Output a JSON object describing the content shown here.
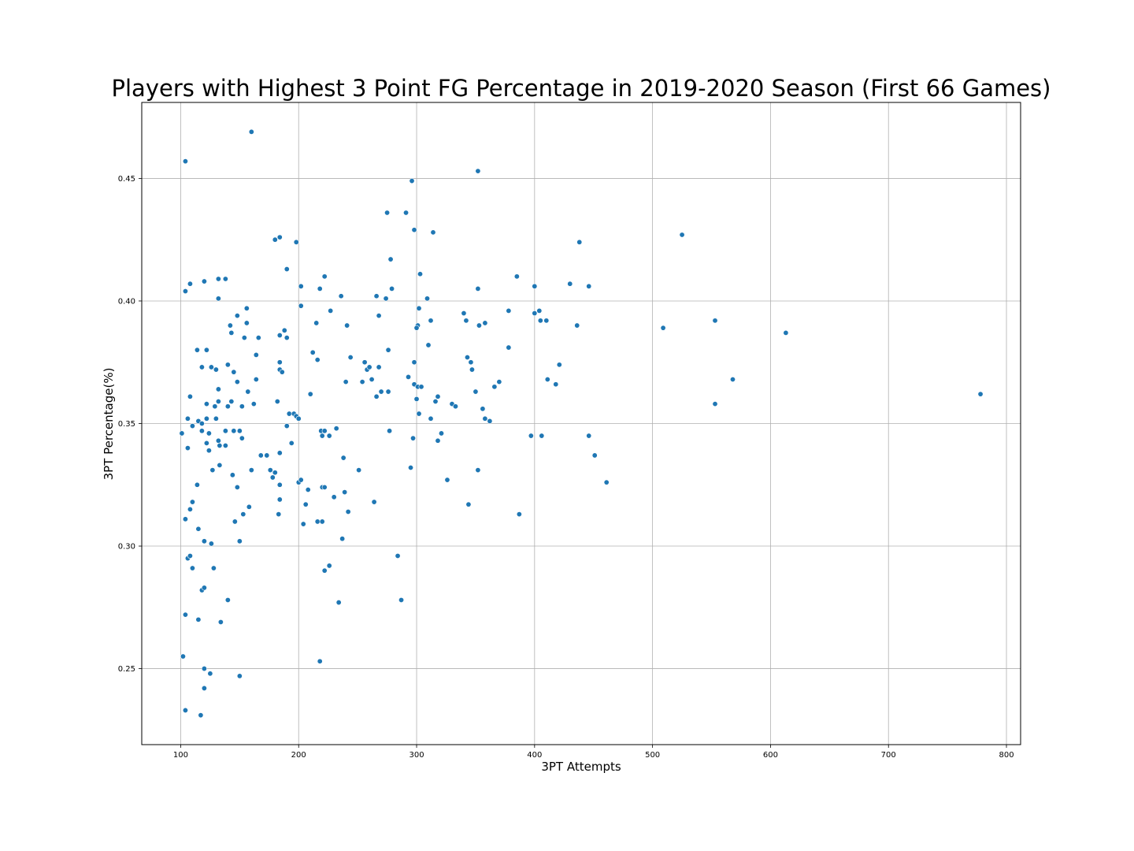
{
  "chart_data": {
    "type": "scatter",
    "title": "Players with Highest 3 Point FG Percentage in 2019-2020 Season (First 66 Games)",
    "xlabel": "3PT Attempts",
    "ylabel": "3PT Percentage(%)",
    "xlim": [
      67,
      812
    ],
    "ylim": [
      0.219,
      0.481
    ],
    "xticks": [
      "100",
      "200",
      "300",
      "400",
      "500",
      "600",
      "700",
      "800"
    ],
    "yticks": [
      "0.25",
      "0.30",
      "0.35",
      "0.40",
      "0.45"
    ],
    "grid": true,
    "marker_color": "#1f77b4",
    "points": [
      [
        104,
        0.457
      ],
      [
        160,
        0.469
      ],
      [
        352,
        0.453
      ],
      [
        296,
        0.449
      ],
      [
        104,
        0.404
      ],
      [
        108,
        0.407
      ],
      [
        120,
        0.408
      ],
      [
        132,
        0.409
      ],
      [
        138,
        0.409
      ],
      [
        132,
        0.401
      ],
      [
        148,
        0.394
      ],
      [
        156,
        0.397
      ],
      [
        142,
        0.39
      ],
      [
        143,
        0.387
      ],
      [
        154,
        0.385
      ],
      [
        156,
        0.391
      ],
      [
        166,
        0.385
      ],
      [
        114,
        0.38
      ],
      [
        122,
        0.38
      ],
      [
        118,
        0.373
      ],
      [
        126,
        0.373
      ],
      [
        130,
        0.372
      ],
      [
        140,
        0.374
      ],
      [
        145,
        0.371
      ],
      [
        148,
        0.367
      ],
      [
        164,
        0.378
      ],
      [
        164,
        0.368
      ],
      [
        157,
        0.363
      ],
      [
        132,
        0.364
      ],
      [
        108,
        0.361
      ],
      [
        122,
        0.358
      ],
      [
        132,
        0.359
      ],
      [
        129,
        0.357
      ],
      [
        140,
        0.357
      ],
      [
        143,
        0.359
      ],
      [
        152,
        0.357
      ],
      [
        162,
        0.358
      ],
      [
        106,
        0.352
      ],
      [
        122,
        0.352
      ],
      [
        130,
        0.352
      ],
      [
        115,
        0.351
      ],
      [
        118,
        0.35
      ],
      [
        110,
        0.349
      ],
      [
        101,
        0.346
      ],
      [
        118,
        0.347
      ],
      [
        124,
        0.346
      ],
      [
        138,
        0.347
      ],
      [
        145,
        0.347
      ],
      [
        150,
        0.347
      ],
      [
        152,
        0.344
      ],
      [
        132,
        0.343
      ],
      [
        122,
        0.342
      ],
      [
        133,
        0.341
      ],
      [
        138,
        0.341
      ],
      [
        106,
        0.34
      ],
      [
        124,
        0.339
      ],
      [
        160,
        0.331
      ],
      [
        168,
        0.337
      ],
      [
        173,
        0.337
      ],
      [
        176,
        0.331
      ],
      [
        178,
        0.328
      ],
      [
        180,
        0.33
      ],
      [
        184,
        0.338
      ],
      [
        183,
        0.313
      ],
      [
        184,
        0.319
      ],
      [
        184,
        0.325
      ],
      [
        127,
        0.331
      ],
      [
        133,
        0.333
      ],
      [
        144,
        0.329
      ],
      [
        148,
        0.324
      ],
      [
        114,
        0.325
      ],
      [
        110,
        0.318
      ],
      [
        108,
        0.315
      ],
      [
        104,
        0.311
      ],
      [
        115,
        0.307
      ],
      [
        153,
        0.313
      ],
      [
        158,
        0.316
      ],
      [
        146,
        0.31
      ],
      [
        150,
        0.302
      ],
      [
        120,
        0.302
      ],
      [
        126,
        0.301
      ],
      [
        106,
        0.295
      ],
      [
        108,
        0.296
      ],
      [
        110,
        0.291
      ],
      [
        128,
        0.291
      ],
      [
        118,
        0.282
      ],
      [
        120,
        0.283
      ],
      [
        140,
        0.278
      ],
      [
        104,
        0.272
      ],
      [
        115,
        0.27
      ],
      [
        134,
        0.269
      ],
      [
        102,
        0.255
      ],
      [
        120,
        0.25
      ],
      [
        125,
        0.248
      ],
      [
        150,
        0.247
      ],
      [
        120,
        0.242
      ],
      [
        104,
        0.233
      ],
      [
        117,
        0.231
      ],
      [
        180,
        0.425
      ],
      [
        184,
        0.426
      ],
      [
        198,
        0.424
      ],
      [
        190,
        0.413
      ],
      [
        182,
        0.359
      ],
      [
        184,
        0.386
      ],
      [
        184,
        0.375
      ],
      [
        184,
        0.372
      ],
      [
        186,
        0.371
      ],
      [
        188,
        0.388
      ],
      [
        190,
        0.385
      ],
      [
        192,
        0.354
      ],
      [
        196,
        0.354
      ],
      [
        198,
        0.353
      ],
      [
        200,
        0.352
      ],
      [
        190,
        0.349
      ],
      [
        194,
        0.342
      ],
      [
        200,
        0.326
      ],
      [
        202,
        0.327
      ],
      [
        206,
        0.317
      ],
      [
        208,
        0.323
      ],
      [
        204,
        0.309
      ],
      [
        202,
        0.398
      ],
      [
        202,
        0.406
      ],
      [
        212,
        0.379
      ],
      [
        210,
        0.362
      ],
      [
        215,
        0.391
      ],
      [
        216,
        0.376
      ],
      [
        218,
        0.405
      ],
      [
        222,
        0.41
      ],
      [
        227,
        0.396
      ],
      [
        219,
        0.347
      ],
      [
        220,
        0.345
      ],
      [
        222,
        0.347
      ],
      [
        226,
        0.345
      ],
      [
        232,
        0.348
      ],
      [
        220,
        0.324
      ],
      [
        222,
        0.324
      ],
      [
        216,
        0.31
      ],
      [
        220,
        0.31
      ],
      [
        230,
        0.32
      ],
      [
        236,
        0.402
      ],
      [
        240,
        0.367
      ],
      [
        241,
        0.39
      ],
      [
        244,
        0.377
      ],
      [
        238,
        0.336
      ],
      [
        239,
        0.322
      ],
      [
        242,
        0.314
      ],
      [
        237,
        0.303
      ],
      [
        222,
        0.29
      ],
      [
        226,
        0.292
      ],
      [
        234,
        0.277
      ],
      [
        218,
        0.253
      ],
      [
        256,
        0.375
      ],
      [
        258,
        0.372
      ],
      [
        260,
        0.373
      ],
      [
        262,
        0.368
      ],
      [
        254,
        0.367
      ],
      [
        251,
        0.331
      ],
      [
        266,
        0.402
      ],
      [
        268,
        0.394
      ],
      [
        268,
        0.373
      ],
      [
        266,
        0.361
      ],
      [
        270,
        0.363
      ],
      [
        264,
        0.318
      ],
      [
        274,
        0.401
      ],
      [
        275,
        0.436
      ],
      [
        278,
        0.417
      ],
      [
        279,
        0.405
      ],
      [
        276,
        0.38
      ],
      [
        276,
        0.363
      ],
      [
        277,
        0.347
      ],
      [
        291,
        0.436
      ],
      [
        298,
        0.429
      ],
      [
        303,
        0.411
      ],
      [
        302,
        0.397
      ],
      [
        301,
        0.39
      ],
      [
        300,
        0.389
      ],
      [
        309,
        0.401
      ],
      [
        310,
        0.382
      ],
      [
        312,
        0.392
      ],
      [
        293,
        0.369
      ],
      [
        298,
        0.366
      ],
      [
        298,
        0.375
      ],
      [
        301,
        0.365
      ],
      [
        304,
        0.365
      ],
      [
        300,
        0.36
      ],
      [
        302,
        0.354
      ],
      [
        297,
        0.344
      ],
      [
        295,
        0.332
      ],
      [
        284,
        0.296
      ],
      [
        287,
        0.278
      ],
      [
        312,
        0.352
      ],
      [
        314,
        0.428
      ],
      [
        318,
        0.361
      ],
      [
        316,
        0.359
      ],
      [
        318,
        0.343
      ],
      [
        321,
        0.346
      ],
      [
        326,
        0.327
      ],
      [
        330,
        0.358
      ],
      [
        333,
        0.357
      ],
      [
        340,
        0.395
      ],
      [
        342,
        0.392
      ],
      [
        343,
        0.377
      ],
      [
        346,
        0.375
      ],
      [
        347,
        0.372
      ],
      [
        350,
        0.363
      ],
      [
        352,
        0.405
      ],
      [
        353,
        0.39
      ],
      [
        352,
        0.331
      ],
      [
        356,
        0.356
      ],
      [
        358,
        0.352
      ],
      [
        358,
        0.391
      ],
      [
        362,
        0.351
      ],
      [
        344,
        0.317
      ],
      [
        366,
        0.365
      ],
      [
        370,
        0.367
      ],
      [
        378,
        0.396
      ],
      [
        378,
        0.381
      ],
      [
        385,
        0.41
      ],
      [
        387,
        0.313
      ],
      [
        397,
        0.345
      ],
      [
        400,
        0.406
      ],
      [
        400,
        0.395
      ],
      [
        404,
        0.396
      ],
      [
        405,
        0.392
      ],
      [
        406,
        0.345
      ],
      [
        410,
        0.392
      ],
      [
        411,
        0.368
      ],
      [
        418,
        0.366
      ],
      [
        421,
        0.374
      ],
      [
        430,
        0.407
      ],
      [
        436,
        0.39
      ],
      [
        438,
        0.424
      ],
      [
        446,
        0.406
      ],
      [
        446,
        0.345
      ],
      [
        451,
        0.337
      ],
      [
        461,
        0.326
      ],
      [
        509,
        0.389
      ],
      [
        525,
        0.427
      ],
      [
        553,
        0.392
      ],
      [
        553,
        0.358
      ],
      [
        568,
        0.368
      ],
      [
        613,
        0.387
      ],
      [
        778,
        0.362
      ]
    ]
  }
}
